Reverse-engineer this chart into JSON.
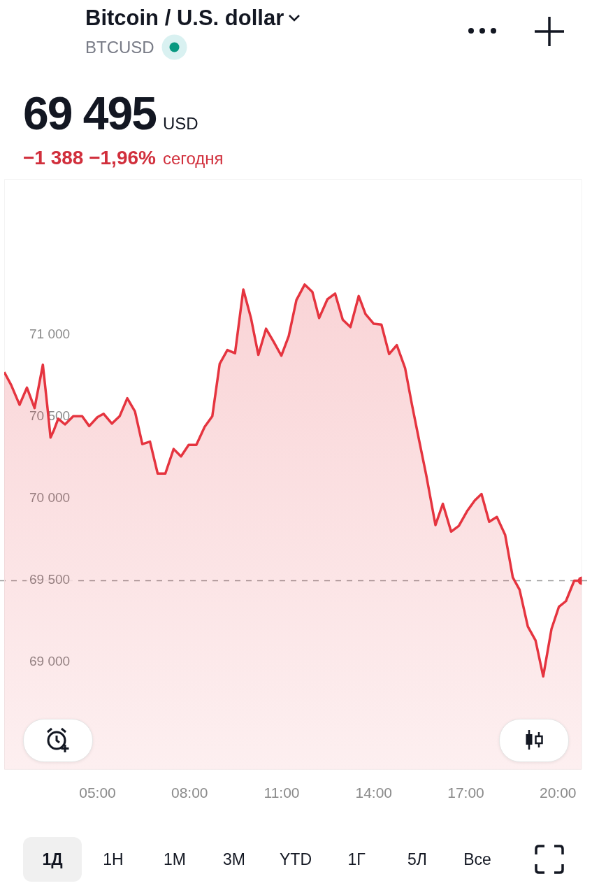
{
  "chart_data": {
    "type": "area",
    "title": "Bitcoin / U.S. dollar",
    "subtitle": "BTCUSD",
    "annotations": [
      "69 495",
      "USD",
      "−1 388 −1,96%",
      "сегодня",
      "1Д",
      "1Н",
      "1М",
      "3М",
      "YTD",
      "1Г",
      "5Л",
      "Все"
    ],
    "x": [
      1.96,
      2.19,
      2.46,
      2.7,
      2.95,
      3.22,
      3.36,
      3.47,
      3.58,
      3.72,
      3.94,
      4.21,
      4.5,
      4.73,
      5,
      5.2,
      5.47,
      5.72,
      5.97,
      6.22,
      6.46,
      6.71,
      6.96,
      7.21,
      7.48,
      7.72,
      7.97,
      8.22,
      8.49,
      8.74,
      8.98,
      9.23,
      9.48,
      9.75,
      10,
      10.24,
      10.49,
      10.74,
      10.99,
      11.23,
      11.48,
      11.75,
      12,
      12.22,
      12.49,
      12.74,
      12.99,
      13.24,
      13.51,
      13.73,
      14,
      14.25,
      14.5,
      14.75,
      15.02,
      15.24,
      15.47,
      15.71,
      16.01,
      16.25,
      16.52,
      16.77,
      17.04,
      17.29,
      17.51,
      17.76,
      18.01,
      18.28,
      18.53,
      18.75,
      19.02,
      19.27,
      19.52,
      19.79,
      20.03,
      20.26,
      20.53,
      20.78
    ],
    "series": [
      {
        "color": "#e5343f",
        "values": [
          70770,
          70690,
          70570,
          70675,
          70550,
          70815,
          70570,
          70370,
          70415,
          70485,
          70450,
          70500,
          70500,
          70440,
          70495,
          70515,
          70455,
          70500,
          70610,
          70530,
          70330,
          70345,
          70150,
          70150,
          70300,
          70255,
          70325,
          70325,
          70435,
          70500,
          70820,
          70905,
          70885,
          71275,
          71100,
          70875,
          71035,
          70955,
          70870,
          70990,
          71210,
          71305,
          71260,
          71100,
          71215,
          71250,
          71090,
          71045,
          71235,
          71125,
          71065,
          71060,
          70880,
          70935,
          70795,
          70575,
          70360,
          70140,
          69835,
          69965,
          69795,
          69830,
          69920,
          69985,
          70025,
          69855,
          69885,
          69775,
          69515,
          69440,
          69215,
          69130,
          68910,
          69200,
          69335,
          69370,
          69495,
          69495
        ]
      }
    ],
    "xticks": [
      {
        "value": 5,
        "label": "05:00"
      },
      {
        "value": 8,
        "label": "08:00"
      },
      {
        "value": 11,
        "label": "11:00"
      },
      {
        "value": 14,
        "label": "14:00"
      },
      {
        "value": 17,
        "label": "17:00"
      },
      {
        "value": 20,
        "label": "20:00"
      }
    ],
    "xlim": [
      1.96,
      20.78
    ],
    "ylim": [
      68340,
      71950
    ],
    "yticks": [
      {
        "value": 69000,
        "label": "69 000"
      },
      {
        "value": 69500,
        "label": "69 500"
      },
      {
        "value": 70000,
        "label": "70 000"
      },
      {
        "value": 70500,
        "label": "70 500"
      },
      {
        "value": 71000,
        "label": "71 000"
      }
    ],
    "ref_lines": [
      {
        "axis": "y",
        "value": 69495,
        "color": "#9a9a9a",
        "line_style": "dashed"
      }
    ],
    "grid": false,
    "legend": false
  }
}
